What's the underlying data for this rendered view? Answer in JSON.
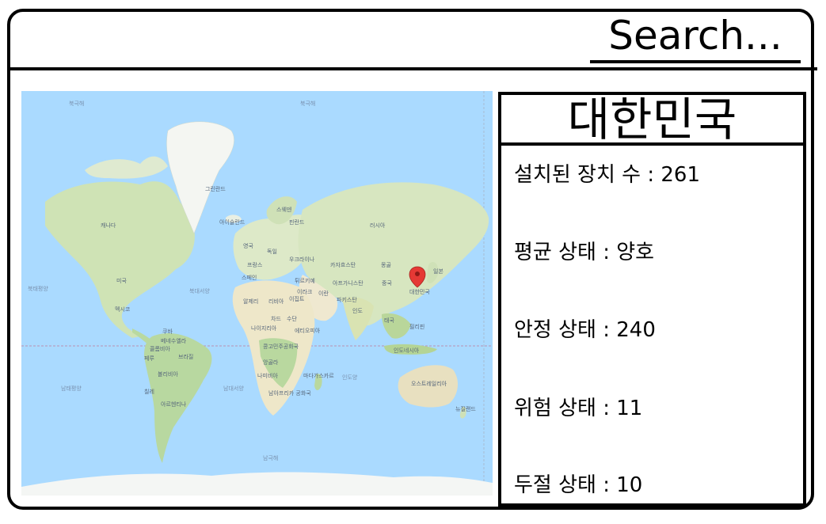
{
  "search": {
    "placeholder": "Search..."
  },
  "map": {
    "marker": {
      "label": "대한민국",
      "color": "#e53935"
    },
    "labels": {
      "greenland": "그린란드",
      "iceland": "아이슬란드",
      "north_pacific": "북태평양",
      "north_atlantic": "북대서양",
      "south_pacific": "남태평양",
      "south_atlantic": "남대서양",
      "indian_ocean": "인도양",
      "southern_ocean": "남극해",
      "arctic_left": "북극해",
      "arctic_right": "북극해",
      "usa": "미국",
      "canada": "캐나다",
      "mexico": "멕시코",
      "brazil": "브라질",
      "peru": "페루",
      "argentina": "아르헨티나",
      "russia": "러시아",
      "china": "중국",
      "mongolia": "몽골",
      "india": "인도",
      "kazakhstan": "카자흐스탄",
      "algeria": "알제리",
      "libya": "리비아",
      "egypt": "이집트",
      "chad": "차드",
      "sudan": "수단",
      "nigeria": "나이지리아",
      "ethiopia": "에티오피아",
      "congo": "콩고민주공화국",
      "angola": "앙골라",
      "namibia": "나미비아",
      "south_africa": "남아프리카 공화국",
      "madagascar": "마다가스카르",
      "australia": "오스트레일리아",
      "japan": "일본",
      "sweden": "스웨덴",
      "finland": "핀란드",
      "uk": "영국",
      "france": "프랑스",
      "spain": "스페인",
      "germany": "독일",
      "ukraine": "우크라이나",
      "turkey": "튀르키예",
      "iran": "이란",
      "iraq": "이라크",
      "afghanistan": "아프가니스탄",
      "pakistan": "파키스탄",
      "indonesia": "인도네시아",
      "philippines": "필리핀",
      "thailand": "태국",
      "new_zealand": "뉴질랜드",
      "cuba": "쿠바",
      "venezuela": "베네수엘라",
      "colombia": "콜롬비아",
      "bolivia": "볼리비아",
      "chile": "칠레"
    }
  },
  "panel": {
    "country": "대한민국",
    "stats": [
      {
        "label": "설치된 장치 수",
        "value": "261"
      },
      {
        "label": "평균 상태",
        "value": "양호"
      },
      {
        "label": "안정 상태",
        "value": "240"
      },
      {
        "label": "위험 상태",
        "value": "11"
      },
      {
        "label": "두절 상태",
        "value": "10"
      }
    ],
    "separator": " : "
  }
}
